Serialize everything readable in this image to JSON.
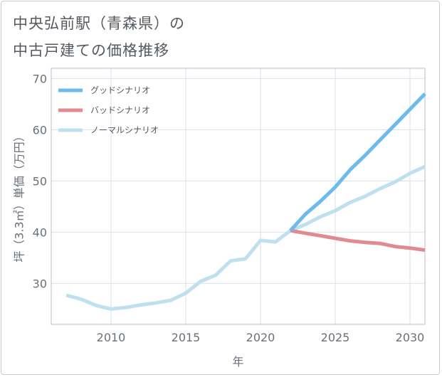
{
  "title_line1": "中央弘前駅（青森県）の",
  "title_line2": "中古戸建ての価格推移",
  "chart_data": {
    "type": "line",
    "xlabel": "年",
    "ylabel": "坪（3.3㎡）単価（万円）",
    "xlim": [
      2006,
      2031
    ],
    "ylim": [
      22,
      72
    ],
    "x_ticks": [
      2010,
      2015,
      2020,
      2025,
      2030
    ],
    "y_ticks": [
      30,
      40,
      50,
      60,
      70
    ],
    "grid": true,
    "legend_position": "top-left",
    "series": [
      {
        "name": "グッドシナリオ",
        "color": "#6bbcec",
        "x": [
          2022,
          2023,
          2024,
          2025,
          2026,
          2027,
          2028,
          2029,
          2030,
          2031
        ],
        "values": [
          40.3,
          43.5,
          46.0,
          48.8,
          52.2,
          55.0,
          58.0,
          61.0,
          64.0,
          67.0
        ]
      },
      {
        "name": "バッドシナリオ",
        "color": "#e08a92",
        "x": [
          2022,
          2023,
          2024,
          2025,
          2026,
          2027,
          2028,
          2029,
          2030,
          2031
        ],
        "values": [
          40.3,
          39.8,
          39.3,
          38.8,
          38.3,
          38.0,
          37.8,
          37.2,
          36.9,
          36.5
        ]
      },
      {
        "name": "ノーマルシナリオ",
        "color": "#bfe0ee",
        "x": [
          2007,
          2008,
          2009,
          2010,
          2011,
          2012,
          2013,
          2014,
          2015,
          2016,
          2017,
          2018,
          2019,
          2020,
          2021,
          2022,
          2023,
          2024,
          2025,
          2026,
          2027,
          2028,
          2029,
          2030,
          2031
        ],
        "values": [
          27.7,
          26.9,
          25.7,
          25.0,
          25.3,
          25.8,
          26.2,
          26.7,
          28.1,
          30.4,
          31.6,
          34.4,
          34.8,
          38.4,
          38.1,
          40.3,
          41.5,
          43.0,
          44.2,
          45.8,
          47.0,
          48.5,
          49.8,
          51.5,
          52.8
        ]
      }
    ]
  }
}
